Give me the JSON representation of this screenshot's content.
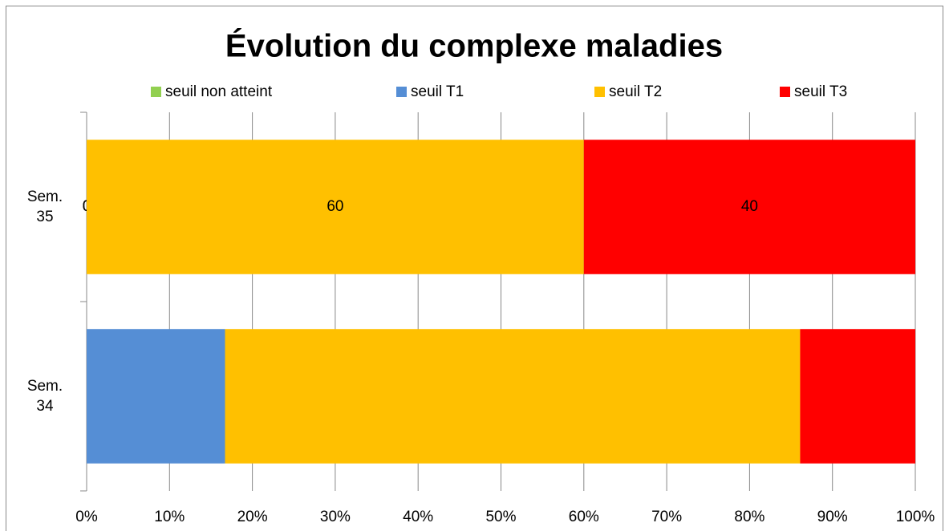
{
  "chart_data": {
    "type": "stacked_barh",
    "title": "Évolution du complexe maladies",
    "categories": [
      "Sem. 34",
      "Sem. 35"
    ],
    "series": [
      {
        "name": "seuil non atteint",
        "color": "#92d050",
        "values": [
          0,
          0
        ],
        "value_labels": [
          null,
          "0"
        ]
      },
      {
        "name": "seuil T1",
        "color": "#558ed5",
        "values": [
          16.7,
          0
        ],
        "value_labels": [
          null,
          "0"
        ]
      },
      {
        "name": "seuil T2",
        "color": "#ffc000",
        "values": [
          69.4,
          60
        ],
        "value_labels": [
          null,
          "60"
        ]
      },
      {
        "name": "seuil T3",
        "color": "#ff0000",
        "values": [
          13.9,
          40
        ],
        "value_labels": [
          null,
          "40"
        ]
      }
    ],
    "xlim": [
      0,
      100
    ],
    "xticks": [
      {
        "value": 0,
        "label": "0%"
      },
      {
        "value": 10,
        "label": "10%"
      },
      {
        "value": 20,
        "label": "20%"
      },
      {
        "value": 30,
        "label": "30%"
      },
      {
        "value": 40,
        "label": "40%"
      },
      {
        "value": 50,
        "label": "50%"
      },
      {
        "value": 60,
        "label": "60%"
      },
      {
        "value": 70,
        "label": "70%"
      },
      {
        "value": 80,
        "label": "80%"
      },
      {
        "value": 90,
        "label": "90%"
      },
      {
        "value": 100,
        "label": "100%"
      }
    ],
    "grid": true,
    "legend": "top"
  }
}
